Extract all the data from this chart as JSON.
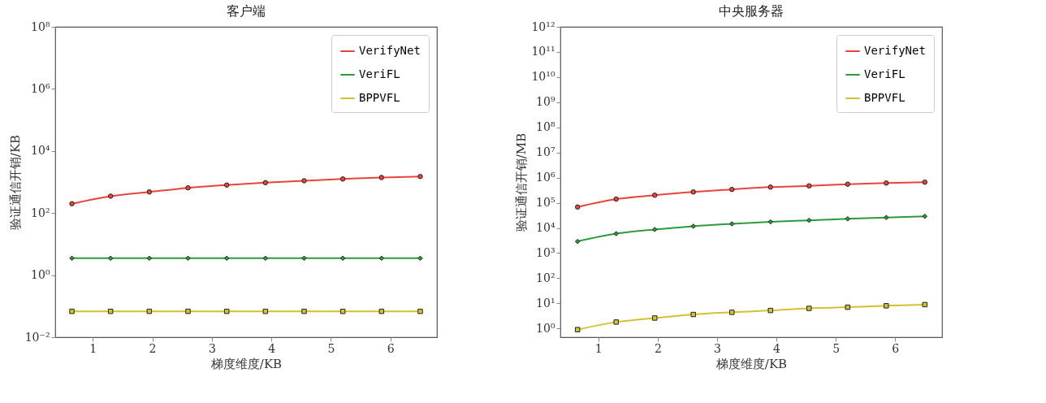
{
  "chart_data": [
    {
      "type": "line",
      "title": "客户端",
      "xlabel": "梯度维度/KB",
      "ylabel": "验证通信开销/KB",
      "log": "y",
      "grid": false,
      "legend": "top right",
      "x": [
        0.65,
        1.3,
        1.95,
        2.6,
        3.25,
        3.9,
        4.55,
        5.2,
        5.85,
        6.5
      ],
      "xlim": [
        0.37,
        6.78
      ],
      "xticks": [
        1,
        2,
        3,
        4,
        5,
        6
      ],
      "ylim": [
        0.01,
        100000000
      ],
      "yticks": [
        {
          "value": 0.01,
          "label": "10⁻²"
        },
        {
          "value": 1,
          "label": "10⁰"
        },
        {
          "value": 100,
          "label": "10²"
        },
        {
          "value": 10000,
          "label": "10⁴"
        },
        {
          "value": 1000000,
          "label": "10⁶"
        },
        {
          "value": 100000000,
          "label": "10⁸"
        }
      ],
      "series": [
        {
          "name": "VerifyNet",
          "color": "#e8443a",
          "marker": "circle",
          "values": [
            200,
            350,
            480,
            650,
            800,
            950,
            1100,
            1250,
            1400,
            1500
          ]
        },
        {
          "name": "VeriFL",
          "color": "#2e9a3a",
          "marker": "diamond",
          "values": [
            3.5,
            3.5,
            3.5,
            3.5,
            3.5,
            3.5,
            3.5,
            3.5,
            3.5,
            3.5
          ]
        },
        {
          "name": "BPPVFL",
          "color": "#d2c231",
          "marker": "square",
          "values": [
            0.068,
            0.068,
            0.068,
            0.068,
            0.068,
            0.068,
            0.068,
            0.068,
            0.068,
            0.068
          ]
        }
      ]
    },
    {
      "type": "line",
      "title": "中央服务器",
      "xlabel": "梯度维度/KB",
      "ylabel": "验证通信开销/MB",
      "log": "y",
      "grid": false,
      "legend": "top right",
      "x": [
        0.65,
        1.3,
        1.95,
        2.6,
        3.25,
        3.9,
        4.55,
        5.2,
        5.85,
        6.5
      ],
      "xlim": [
        0.36,
        6.79
      ],
      "xticks": [
        1,
        2,
        3,
        4,
        5,
        6
      ],
      "ylim": [
        0.45,
        1000000000000
      ],
      "yticks": [
        {
          "value": 1,
          "label": "10⁰"
        },
        {
          "value": 10,
          "label": "10¹"
        },
        {
          "value": 100,
          "label": "10²"
        },
        {
          "value": 1000,
          "label": "10³"
        },
        {
          "value": 10000,
          "label": "10⁴"
        },
        {
          "value": 100000,
          "label": "10⁵"
        },
        {
          "value": 1000000,
          "label": "10⁶"
        },
        {
          "value": 10000000,
          "label": "10⁷"
        },
        {
          "value": 100000000,
          "label": "10⁸"
        },
        {
          "value": 1000000000,
          "label": "10⁹"
        },
        {
          "value": 10000000000,
          "label": "10¹⁰"
        },
        {
          "value": 100000000000,
          "label": "10¹¹"
        },
        {
          "value": 1000000000000,
          "label": "10¹²"
        }
      ],
      "series": [
        {
          "name": "VerifyNet",
          "color": "#e8443a",
          "marker": "circle",
          "values": [
            68000,
            140000,
            200000,
            270000,
            340000,
            420000,
            470000,
            550000,
            610000,
            660000
          ]
        },
        {
          "name": "VeriFL",
          "color": "#2e9a3a",
          "marker": "diamond",
          "values": [
            2900,
            5900,
            8700,
            11700,
            14500,
            17400,
            20000,
            23000,
            26000,
            29000
          ]
        },
        {
          "name": "BPPVFL",
          "color": "#d2c231",
          "marker": "square",
          "values": [
            0.9,
            1.8,
            2.6,
            3.6,
            4.4,
            5.2,
            6.3,
            7.0,
            8.0,
            8.9
          ]
        }
      ]
    }
  ]
}
